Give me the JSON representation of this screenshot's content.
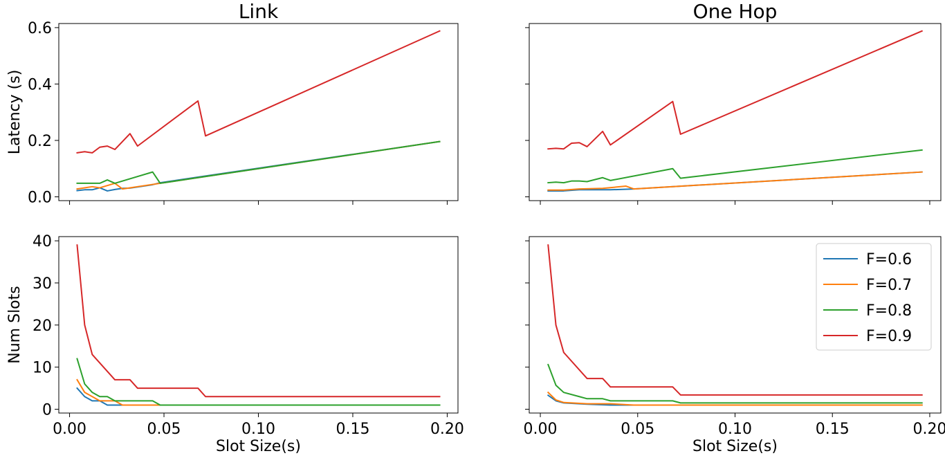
{
  "chart_data": [
    {
      "type": "line",
      "title": "Link",
      "xlabel": "",
      "ylabel": "Latency (s)",
      "xlim": [
        -0.0057,
        0.2057
      ],
      "ylim": [
        -0.0135,
        0.6145
      ],
      "xticks": [
        0.0,
        0.05,
        0.1,
        0.15,
        0.2
      ],
      "xtick_labels": [],
      "yticks": [
        0.0,
        0.2,
        0.4,
        0.6
      ],
      "ytick_labels": [
        "0.0",
        "0.2",
        "0.4",
        "0.6"
      ],
      "series": [
        {
          "color": "#1f77b4",
          "x": [
            0.004,
            0.008,
            0.012,
            0.016,
            0.02,
            0.024,
            0.028,
            0.032,
            0.036,
            0.044,
            0.048,
            0.068,
            0.072,
            0.196
          ],
          "y": [
            0.022,
            0.025,
            0.025,
            0.032,
            0.021,
            0.026,
            0.03,
            0.031,
            0.035,
            0.043,
            0.05,
            0.07,
            0.074,
            0.196
          ]
        },
        {
          "color": "#ff7f0e",
          "x": [
            0.004,
            0.008,
            0.012,
            0.016,
            0.02,
            0.024,
            0.028,
            0.032,
            0.036,
            0.044,
            0.048,
            0.068,
            0.072,
            0.196
          ],
          "y": [
            0.028,
            0.032,
            0.036,
            0.032,
            0.04,
            0.048,
            0.028,
            0.032,
            0.036,
            0.044,
            0.048,
            0.068,
            0.072,
            0.196
          ]
        },
        {
          "color": "#2ca02c",
          "x": [
            0.004,
            0.008,
            0.012,
            0.016,
            0.02,
            0.024,
            0.044,
            0.048,
            0.068,
            0.072,
            0.196
          ],
          "y": [
            0.048,
            0.048,
            0.048,
            0.048,
            0.06,
            0.048,
            0.088,
            0.048,
            0.068,
            0.072,
            0.196
          ]
        },
        {
          "color": "#d62728",
          "x": [
            0.004,
            0.008,
            0.012,
            0.016,
            0.02,
            0.024,
            0.032,
            0.036,
            0.068,
            0.072,
            0.196
          ],
          "y": [
            0.156,
            0.16,
            0.156,
            0.176,
            0.18,
            0.168,
            0.224,
            0.18,
            0.34,
            0.216,
            0.588
          ]
        }
      ]
    },
    {
      "type": "line",
      "title": "One Hop",
      "xlabel": "",
      "ylabel": "",
      "xlim": [
        -0.0057,
        0.2057
      ],
      "ylim": [
        -0.0135,
        0.6145
      ],
      "xticks": [
        0.0,
        0.05,
        0.1,
        0.15,
        0.2
      ],
      "xtick_labels": [],
      "yticks": [
        0.0,
        0.2,
        0.4,
        0.6
      ],
      "ytick_labels": [],
      "series": [
        {
          "color": "#1f77b4",
          "x": [
            0.004,
            0.012,
            0.02,
            0.036,
            0.048,
            0.196
          ],
          "y": [
            0.021,
            0.021,
            0.025,
            0.025,
            0.028,
            0.088
          ]
        },
        {
          "color": "#ff7f0e",
          "x": [
            0.004,
            0.012,
            0.02,
            0.032,
            0.044,
            0.048,
            0.196
          ],
          "y": [
            0.024,
            0.024,
            0.028,
            0.03,
            0.038,
            0.028,
            0.088
          ]
        },
        {
          "color": "#2ca02c",
          "x": [
            0.004,
            0.008,
            0.012,
            0.016,
            0.02,
            0.024,
            0.032,
            0.036,
            0.068,
            0.072,
            0.196
          ],
          "y": [
            0.05,
            0.052,
            0.05,
            0.056,
            0.056,
            0.054,
            0.068,
            0.058,
            0.1,
            0.066,
            0.166
          ]
        },
        {
          "color": "#d62728",
          "x": [
            0.004,
            0.008,
            0.012,
            0.016,
            0.02,
            0.024,
            0.032,
            0.036,
            0.068,
            0.072,
            0.196
          ],
          "y": [
            0.17,
            0.172,
            0.17,
            0.19,
            0.192,
            0.178,
            0.232,
            0.184,
            0.338,
            0.222,
            0.588
          ]
        }
      ]
    },
    {
      "type": "line",
      "title": "",
      "xlabel": "Slot Size(s)",
      "ylabel": "Num Slots",
      "xlim": [
        -0.0057,
        0.2057
      ],
      "ylim": [
        -0.9,
        41.0
      ],
      "xticks": [
        0.0,
        0.05,
        0.1,
        0.15,
        0.2
      ],
      "xtick_labels": [
        "0.00",
        "0.05",
        "0.10",
        "0.15",
        "0.20"
      ],
      "yticks": [
        0,
        10,
        20,
        30,
        40
      ],
      "ytick_labels": [
        "0",
        "10",
        "20",
        "30",
        "40"
      ],
      "series": [
        {
          "color": "#1f77b4",
          "x": [
            0.004,
            0.008,
            0.012,
            0.016,
            0.02,
            0.024,
            0.196
          ],
          "y": [
            5,
            3,
            2,
            2,
            1,
            1,
            1
          ]
        },
        {
          "color": "#ff7f0e",
          "x": [
            0.004,
            0.008,
            0.012,
            0.016,
            0.02,
            0.024,
            0.028,
            0.196
          ],
          "y": [
            7,
            4,
            3,
            2,
            2,
            2,
            1,
            1
          ]
        },
        {
          "color": "#2ca02c",
          "x": [
            0.004,
            0.008,
            0.012,
            0.016,
            0.02,
            0.024,
            0.044,
            0.048,
            0.196
          ],
          "y": [
            12,
            6,
            4,
            3,
            3,
            2,
            2,
            1,
            1
          ]
        },
        {
          "color": "#d62728",
          "x": [
            0.004,
            0.008,
            0.012,
            0.024,
            0.032,
            0.036,
            0.068,
            0.072,
            0.196
          ],
          "y": [
            39,
            20,
            13,
            7,
            7,
            5,
            5,
            3,
            3
          ]
        }
      ]
    },
    {
      "type": "line",
      "title": "",
      "xlabel": "Slot Size(s)",
      "ylabel": "",
      "xlim": [
        -0.0057,
        0.2057
      ],
      "ylim": [
        -0.9,
        41.0
      ],
      "xticks": [
        0.0,
        0.05,
        0.1,
        0.15,
        0.2
      ],
      "xtick_labels": [
        "0.00",
        "0.05",
        "0.10",
        "0.15",
        "0.20"
      ],
      "yticks": [
        0,
        10,
        20,
        30,
        40
      ],
      "ytick_labels": [],
      "legend": {
        "placement": "top-right",
        "entries": [
          "F=0.6",
          "F=0.7",
          "F=0.8",
          "F=0.9"
        ]
      },
      "series": [
        {
          "color": "#1f77b4",
          "x": [
            0.004,
            0.008,
            0.012,
            0.024,
            0.036,
            0.048,
            0.196
          ],
          "y": [
            3.3,
            2.0,
            1.5,
            1.2,
            1.0,
            1.0,
            1.0
          ]
        },
        {
          "color": "#ff7f0e",
          "x": [
            0.004,
            0.008,
            0.012,
            0.024,
            0.036,
            0.048,
            0.196
          ],
          "y": [
            4.0,
            2.2,
            1.6,
            1.3,
            1.3,
            1.0,
            1.0
          ]
        },
        {
          "color": "#2ca02c",
          "x": [
            0.004,
            0.008,
            0.012,
            0.02,
            0.024,
            0.032,
            0.036,
            0.068,
            0.072,
            0.196
          ],
          "y": [
            10.6,
            5.7,
            4.0,
            3.0,
            2.5,
            2.5,
            2.0,
            2.0,
            1.5,
            1.5
          ]
        },
        {
          "color": "#d62728",
          "x": [
            0.004,
            0.008,
            0.012,
            0.024,
            0.032,
            0.036,
            0.068,
            0.072,
            0.196
          ],
          "y": [
            39,
            20,
            13.5,
            7.3,
            7.3,
            5.3,
            5.3,
            3.4,
            3.4
          ]
        }
      ]
    }
  ]
}
